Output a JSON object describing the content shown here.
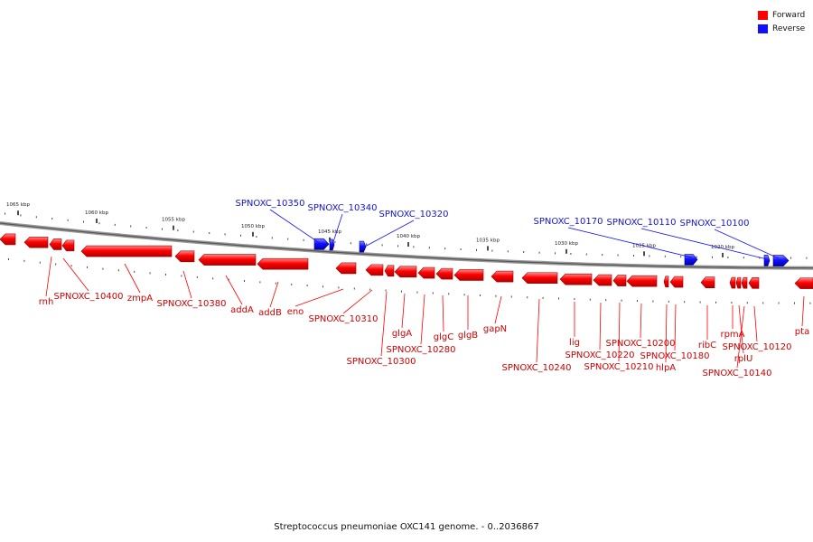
{
  "legend": {
    "forward_label": "Forward",
    "reverse_label": "Reverse",
    "forward_color": "#ff0000",
    "reverse_color": "#1010ff"
  },
  "caption": "Streptococcus pneumoniae OXC141 genome. - 0..2036867",
  "scale": {
    "tick_labels": [
      "1065 kbp",
      "1060 kbp",
      "1055 kbp",
      "1050 kbp",
      "1045 kbp",
      "1040 kbp",
      "1035 kbp",
      "1030 kbp",
      "1025 kbp",
      "1020 kbp"
    ]
  },
  "genes": {
    "forward": [
      "rnh",
      "SPNOXC_10400",
      "zmpA",
      "SPNOXC_10380",
      "addA",
      "addB",
      "eno",
      "SPNOXC_10310",
      "SPNOXC_10300",
      "glgA",
      "SPNOXC_10280",
      "glgC",
      "glgB",
      "gapN",
      "SPNOXC_10240",
      "lig",
      "SPNOXC_10220",
      "SPNOXC_10210",
      "SPNOXC_10200",
      "hlpA",
      "SPNOXC_10180",
      "ribC",
      "rpmA",
      "rplU",
      "SPNOXC_10140",
      "SPNOXC_10120",
      "pta"
    ],
    "reverse": [
      "SPNOXC_10350",
      "SPNOXC_10340",
      "SPNOXC_10320",
      "SPNOXC_10170",
      "SPNOXC_10110",
      "SPNOXC_10100"
    ]
  }
}
